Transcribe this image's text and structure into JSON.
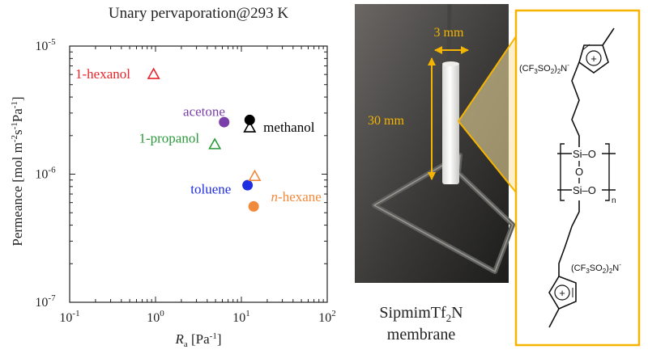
{
  "chart_data": {
    "type": "scatter",
    "title": "Unary pervaporation@293 K",
    "xlabel": {
      "symbol": "R",
      "subscript": "a",
      "unit": " [Pa",
      "unit_exp": "-1",
      "unit_end": "]"
    },
    "ylabel": "Permeance [mol m-2s-1Pa-1]",
    "x_scale": "log",
    "y_scale": "log",
    "xlim": [
      0.1,
      100
    ],
    "ylim": [
      1e-07,
      1e-05
    ],
    "x_ticks": [
      {
        "value": 0.1,
        "base": "10",
        "exp": "-1"
      },
      {
        "value": 1,
        "base": "10",
        "exp": "0"
      },
      {
        "value": 10,
        "base": "10",
        "exp": "1"
      },
      {
        "value": 100,
        "base": "10",
        "exp": "2"
      }
    ],
    "y_ticks": [
      {
        "value": 1e-07,
        "base": "10",
        "exp": "-7"
      },
      {
        "value": 1e-06,
        "base": "10",
        "exp": "-6"
      },
      {
        "value": 1e-05,
        "base": "10",
        "exp": "-5"
      }
    ],
    "grid": false,
    "legend": "none",
    "points": [
      {
        "name": "1-hexanol",
        "x": 0.95,
        "y": 6e-06,
        "marker": "triangle-open",
        "color": "#e8262c"
      },
      {
        "name": "acetone",
        "x": 6.3,
        "y": 2.55e-06,
        "marker": "circle-filled",
        "color": "#7a3fa8"
      },
      {
        "name": "methanol",
        "x": 12.5,
        "y": 2.65e-06,
        "marker": "circle-filled",
        "color": "#000000"
      },
      {
        "name": "methanol",
        "x": 12.5,
        "y": 2.3e-06,
        "marker": "triangle-open",
        "color": "#000000"
      },
      {
        "name": "1-propanol",
        "x": 4.9,
        "y": 1.7e-06,
        "marker": "triangle-open",
        "color": "#2a9a3a"
      },
      {
        "name": "toluene",
        "x": 11.8,
        "y": 8.2e-07,
        "marker": "circle-filled",
        "color": "#1f2ee0"
      },
      {
        "name": "n-hexane",
        "x": 14.3,
        "y": 9.6e-07,
        "marker": "triangle-open",
        "color": "#f08a3c"
      },
      {
        "name": "n-hexane",
        "x": 13.9,
        "y": 5.6e-07,
        "marker": "circle-filled",
        "color": "#f08a3c"
      }
    ],
    "annotations": [
      {
        "id": "hexanol",
        "text": "1-hexanol",
        "color": "#e8262c",
        "x": 0.1,
        "y": 6e-06
      },
      {
        "id": "acetone",
        "text": "acetone",
        "color": "#7a3fa8",
        "x": 1.8,
        "y": 3.05e-06
      },
      {
        "id": "methanol",
        "text": "methanol",
        "color": "#000000",
        "x": 15.5,
        "y": 2.3e-06
      },
      {
        "id": "propanol",
        "text": "1-propanol",
        "color": "#2a9a3a",
        "x": 0.55,
        "y": 1.9e-06
      },
      {
        "id": "toluene",
        "text": "toluene",
        "color": "#1f2ee0",
        "x": 2.2,
        "y": 7.6e-07
      },
      {
        "id": "hexane",
        "text": "-hexane",
        "prefix": "n",
        "color": "#f08a3c",
        "x": 19,
        "y": 6.6e-07
      }
    ]
  },
  "photo": {
    "diameter_label": "3 mm",
    "length_label": "30 mm",
    "accent_color": "#f4b400",
    "caption_line1_main": "SipmimTf",
    "caption_line1_sub": "2",
    "caption_line1_end": "N",
    "caption_line2": "membrane"
  },
  "structure": {
    "anion_top": "(CF3SO2)2N-",
    "anion_bottom": "(CF3SO2)2N-",
    "cation_charge": "+",
    "si_o_top": "Si–O",
    "o_mid": "O",
    "si_o_bottom": "Si–O",
    "repeat_n": "n"
  }
}
